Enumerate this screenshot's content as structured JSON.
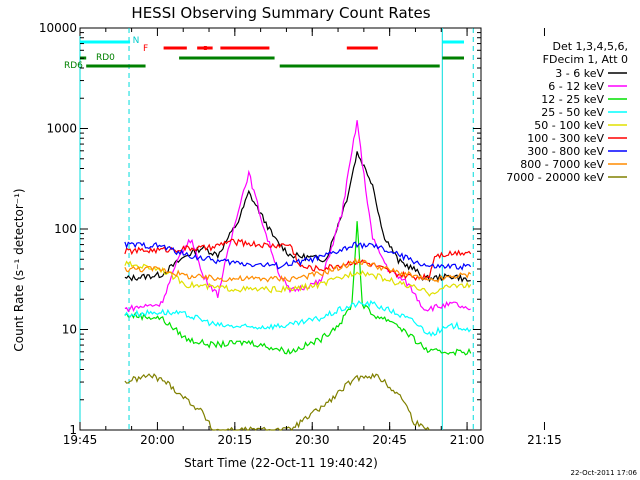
{
  "chart_data": {
    "type": "line",
    "title": "HESSI Observing Summary Count Rates",
    "xlabel": "Start Time (22-Oct-11 19:40:42)",
    "ylabel": "Count Rate (s⁻¹ detector⁻¹)",
    "ylog": true,
    "xlim_minutes": [
      19.3,
      97.0
    ],
    "ylim": [
      1,
      10000
    ],
    "x_ticks": [
      "19:45",
      "20:00",
      "20:15",
      "20:30",
      "20:45",
      "21:00",
      "21:15"
    ],
    "y_ticks": [
      "1",
      "10",
      "100",
      "1000",
      "10000"
    ],
    "legend": {
      "placement": "right",
      "header": [
        "Det 1,3,4,5,6,",
        "FDecim 1, Att 0"
      ]
    },
    "flags": {
      "rd0_label": "RD0",
      "rd6_label": "RD6",
      "n_label": "N",
      "f_label": "F"
    },
    "footer_timestamp": "22-Oct-2011 17:06",
    "series": [
      {
        "name": "3 - 6 keV",
        "color": "#000000",
        "x": [
          28,
          35,
          40,
          43,
          46,
          50,
          52,
          57,
          60,
          67,
          71,
          73,
          76,
          78,
          81,
          84,
          86,
          92,
          95
        ],
        "y": [
          32,
          35,
          55,
          65,
          55,
          120,
          230,
          80,
          55,
          50,
          200,
          580,
          280,
          90,
          48,
          40,
          32,
          34,
          30
        ]
      },
      {
        "name": "6 - 12 keV",
        "color": "#ff00ff",
        "x": [
          28,
          35,
          39,
          41,
          43,
          46,
          50,
          52,
          55,
          58,
          60,
          66,
          70,
          73,
          74,
          76,
          79,
          83,
          86,
          92,
          95
        ],
        "y": [
          16,
          18,
          60,
          80,
          35,
          22,
          160,
          360,
          100,
          35,
          24,
          30,
          140,
          1200,
          450,
          80,
          40,
          28,
          16,
          18,
          15
        ]
      },
      {
        "name": "12 - 25 keV",
        "color": "#00e000",
        "x": [
          28,
          35,
          40,
          45,
          52,
          60,
          66,
          70,
          72,
          73,
          74,
          76,
          80,
          84,
          87,
          92,
          95
        ],
        "y": [
          14,
          13,
          8,
          7,
          7.5,
          6,
          8,
          12,
          18,
          120,
          18,
          14,
          12,
          8,
          6,
          6,
          6
        ]
      },
      {
        "name": "25 - 50 keV",
        "color": "#00ffff",
        "x": [
          28,
          35,
          40,
          46,
          52,
          60,
          66,
          70,
          73,
          76,
          80,
          84,
          87,
          92,
          95
        ],
        "y": [
          14,
          15,
          14,
          11,
          10.5,
          11,
          13,
          16,
          18,
          18,
          15,
          12,
          9,
          11,
          10
        ]
      },
      {
        "name": "50 - 100 keV",
        "color": "#e0e000",
        "x": [
          28,
          35,
          40,
          46,
          52,
          60,
          66,
          70,
          73,
          76,
          80,
          84,
          87,
          92,
          95
        ],
        "y": [
          45,
          40,
          28,
          26,
          25,
          25,
          28,
          33,
          38,
          35,
          30,
          26,
          23,
          28,
          27
        ]
      },
      {
        "name": "100 - 300 keV",
        "color": "#ff0000",
        "x": [
          28,
          35,
          40,
          45,
          48,
          52,
          56,
          60,
          62,
          66,
          70,
          73,
          76,
          80,
          84,
          87,
          88,
          92,
          95
        ],
        "y": [
          60,
          62,
          64,
          65,
          75,
          72,
          68,
          70,
          42,
          40,
          44,
          48,
          44,
          36,
          33,
          34,
          55,
          58,
          60
        ]
      },
      {
        "name": "300 - 800 keV",
        "color": "#0000ff",
        "x": [
          28,
          35,
          40,
          46,
          52,
          58,
          60,
          66,
          70,
          73,
          76,
          80,
          84,
          87,
          92,
          95
        ],
        "y": [
          70,
          68,
          55,
          48,
          45,
          43,
          45,
          52,
          62,
          70,
          68,
          58,
          48,
          42,
          42,
          43
        ]
      },
      {
        "name": "800 - 7000 keV",
        "color": "#ff8c00",
        "x": [
          28,
          35,
          40,
          46,
          52,
          60,
          66,
          70,
          73,
          76,
          80,
          84,
          87,
          92,
          95
        ],
        "y": [
          40,
          40,
          34,
          32,
          32,
          32,
          36,
          42,
          48,
          44,
          38,
          34,
          30,
          34,
          35
        ]
      },
      {
        "name": "7000 - 20000 keV",
        "color": "#808000",
        "x": [
          28,
          30,
          33,
          36,
          40,
          43,
          45,
          48,
          52,
          60,
          64,
          68,
          71,
          74,
          77,
          80,
          82,
          84,
          87
        ],
        "y": [
          3,
          3.2,
          3.5,
          3,
          2,
          1.5,
          1,
          1,
          1,
          1,
          1.4,
          2,
          2.8,
          3.5,
          3.4,
          2.5,
          2,
          1.2,
          1
        ]
      }
    ]
  }
}
